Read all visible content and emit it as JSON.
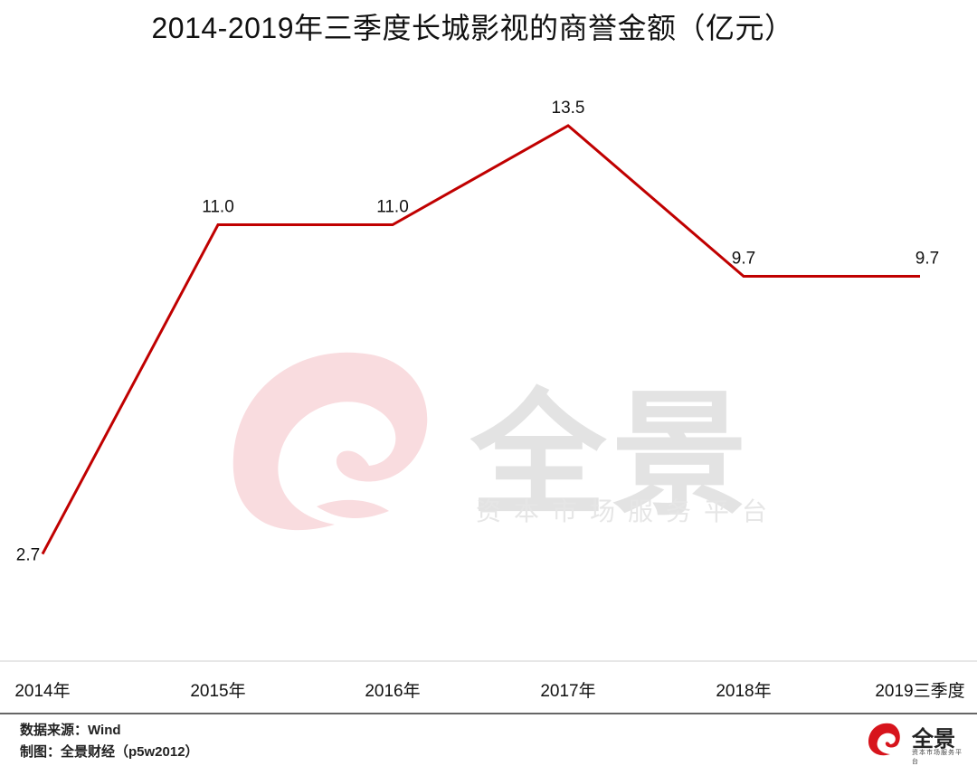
{
  "title": "2014-2019年三季度长城影视的商誉金额（亿元）",
  "chart_data": {
    "type": "line",
    "title": "2014-2019年三季度长城影视的商誉金额（亿元）",
    "categories": [
      "2014年",
      "2015年",
      "2016年",
      "2017年",
      "2018年",
      "2019三季度"
    ],
    "series": [
      {
        "values": [
          2.7,
          11.0,
          11.0,
          13.5,
          9.7,
          9.7
        ]
      }
    ],
    "data_labels": [
      "2.7",
      "11.0",
      "11.0",
      "13.5",
      "9.7",
      "9.7"
    ],
    "ylim": [
      0,
      15
    ],
    "grid": false,
    "line_color": "#c00000"
  },
  "footer": {
    "source": "数据来源：Wind",
    "credit": "制图：全景财经（p5w2012）"
  },
  "watermark": {
    "brand": "全景",
    "subtitle": "资本市场服务平台"
  },
  "logo": {
    "brand": "全景",
    "subtitle": "资本市场服务平台",
    "icon": "p5w-swirl-icon"
  },
  "colors": {
    "line": "#c00000",
    "watermark_swirl": "#f9dcdf",
    "logo_swirl": "#d7141c"
  }
}
